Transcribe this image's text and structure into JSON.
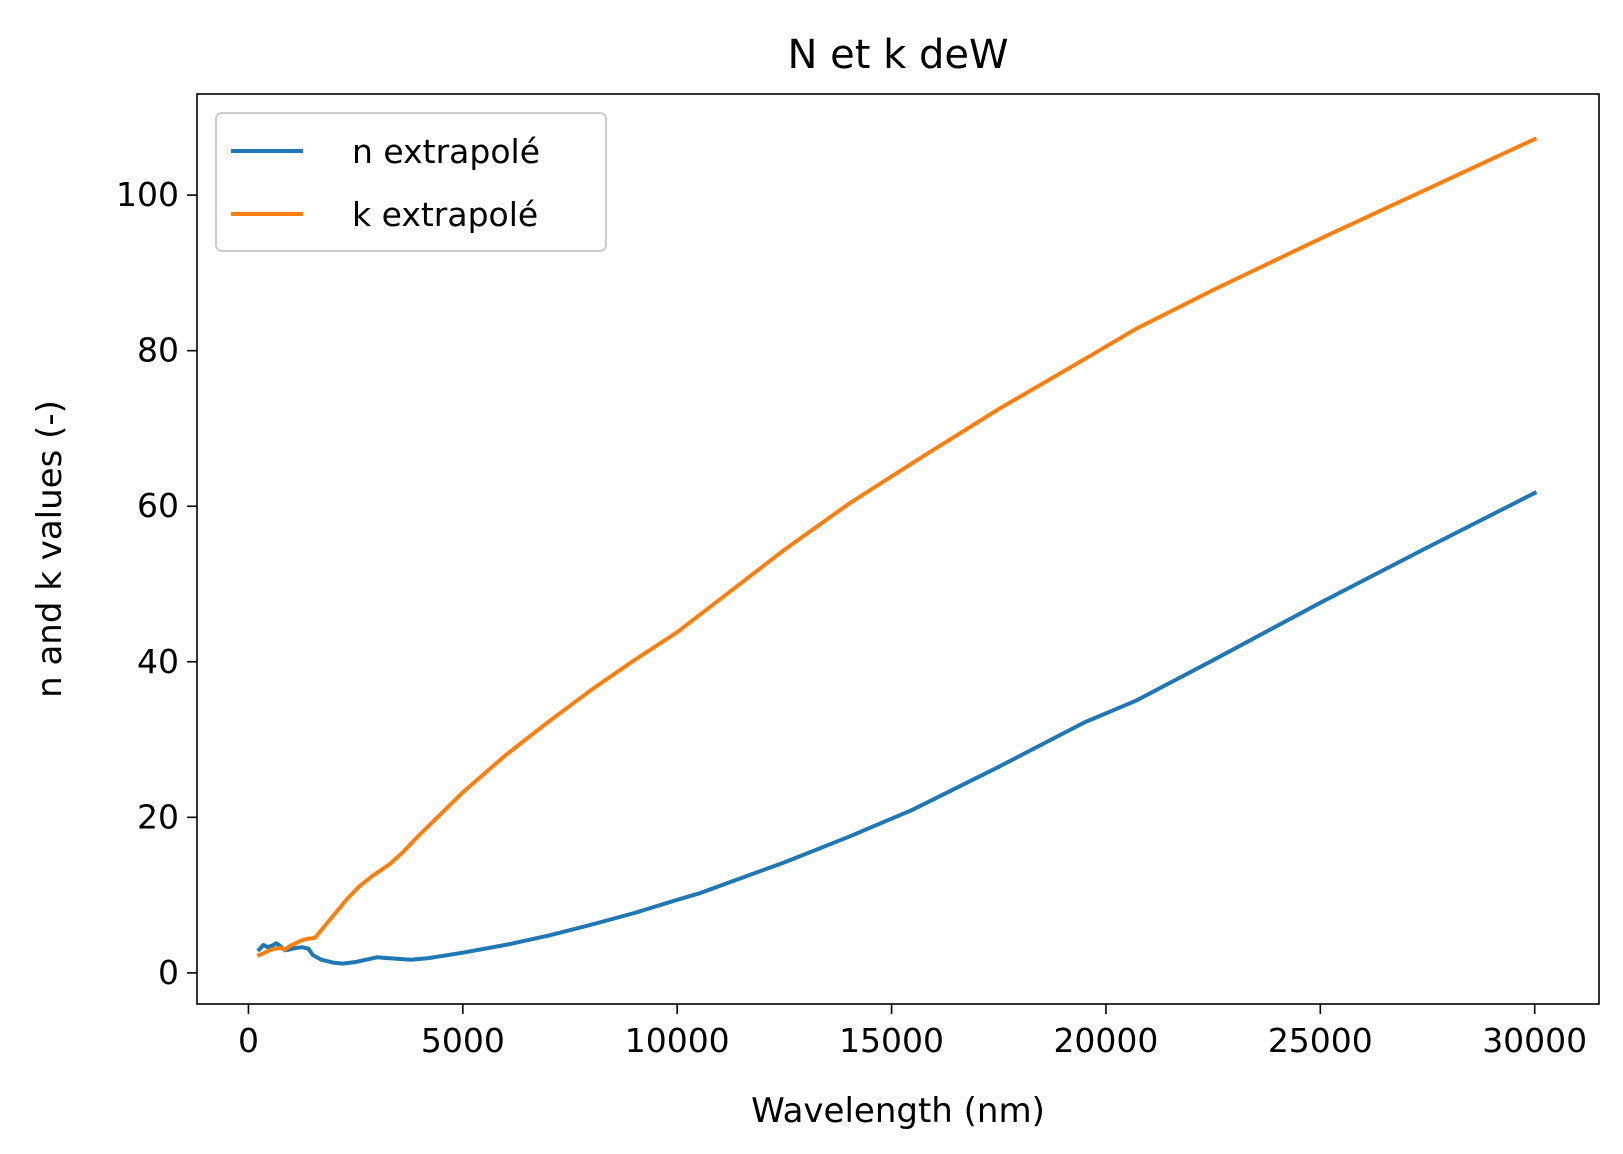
{
  "chart_data": {
    "type": "line",
    "title": "N et k deW",
    "xlabel": "Wavelength (nm)",
    "ylabel": "n and k values (-)",
    "xlim": [
      -1200,
      31500
    ],
    "ylim": [
      -4,
      113
    ],
    "xticks": [
      0,
      5000,
      10000,
      15000,
      20000,
      25000,
      30000
    ],
    "xtick_labels": [
      "0",
      "5000",
      "10000",
      "15000",
      "20000",
      "25000",
      "30000"
    ],
    "yticks": [
      0,
      20,
      40,
      60,
      80,
      100
    ],
    "ytick_labels": [
      "0",
      "20",
      "40",
      "60",
      "80",
      "100"
    ],
    "grid": false,
    "legend_position": "top-left",
    "series": [
      {
        "name": "n extrapolé",
        "color": "#1f77b4",
        "x": [
          250,
          350,
          450,
          550,
          650,
          750,
          850,
          950,
          1100,
          1250,
          1400,
          1500,
          1700,
          2000,
          2200,
          2500,
          3000,
          3500,
          3800,
          4200,
          5000,
          6000,
          7000,
          8000,
          9000,
          10000,
          10500,
          12500,
          14000,
          15500,
          17500,
          19500,
          20700,
          22500,
          25000,
          27500,
          30000
        ],
        "y": [
          3.0,
          3.6,
          3.3,
          3.5,
          3.8,
          3.4,
          2.9,
          3.0,
          3.2,
          3.3,
          3.1,
          2.3,
          1.7,
          1.3,
          1.2,
          1.4,
          2.0,
          1.8,
          1.7,
          1.9,
          2.6,
          3.6,
          4.8,
          6.2,
          7.7,
          9.4,
          10.2,
          14.2,
          17.5,
          21.0,
          26.5,
          32.2,
          35.0,
          40.2,
          47.6,
          54.7,
          61.7
        ]
      },
      {
        "name": "k extrapolé",
        "color": "#ff7f0e",
        "x": [
          250,
          350,
          450,
          600,
          750,
          850,
          950,
          1100,
          1250,
          1400,
          1550,
          1700,
          2000,
          2300,
          2600,
          2900,
          3300,
          3600,
          4000,
          4500,
          5000,
          6000,
          7000,
          8000,
          9000,
          10000,
          12500,
          14000,
          15500,
          17500,
          19500,
          20700,
          22500,
          25000,
          27500,
          30000
        ],
        "y": [
          2.3,
          2.5,
          2.8,
          3.1,
          3.2,
          3.0,
          3.4,
          3.8,
          4.2,
          4.4,
          4.5,
          5.5,
          7.5,
          9.5,
          11.2,
          12.5,
          14.0,
          15.5,
          17.8,
          20.5,
          23.2,
          28.0,
          32.3,
          36.4,
          40.2,
          43.8,
          54.4,
          60.3,
          65.6,
          72.5,
          78.9,
          82.8,
          87.8,
          94.4,
          100.8,
          107.2
        ]
      }
    ]
  }
}
